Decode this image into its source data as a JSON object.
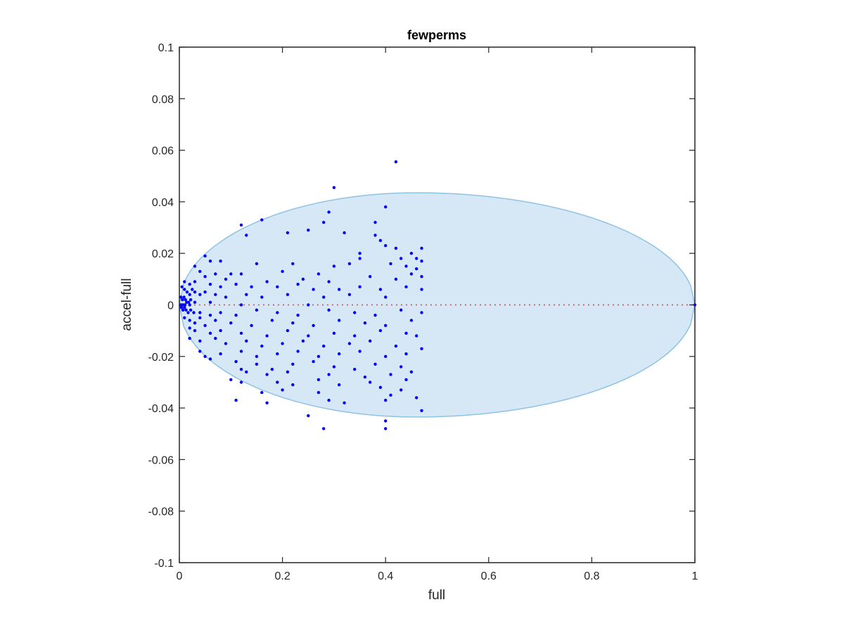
{
  "chart_data": {
    "type": "scatter",
    "title": "fewperms",
    "xlabel": "full",
    "ylabel": "accel-full",
    "xlim": [
      0,
      1
    ],
    "ylim": [
      -0.1,
      0.1
    ],
    "x_ticks": [
      "0",
      "0.2",
      "0.4",
      "0.6",
      "0.8",
      "1"
    ],
    "y_ticks": [
      "0.1",
      "0.08",
      "0.06",
      "0.04",
      "0.02",
      "0",
      "-0.02",
      "-0.04",
      "-0.06",
      "-0.08",
      "-0.1"
    ],
    "grid": false,
    "legend": "none",
    "colors": {
      "points": "#0000ff",
      "zero_line": "#ff3333",
      "ellipse_fill": "#d6e8f5",
      "ellipse_edge": "#8ec3e3",
      "axes": "#262626"
    },
    "ellipse": {
      "x_min": 0,
      "x_max": 1,
      "peak_x": 0.46,
      "peak_y": 0.0435
    },
    "zero_line": {
      "y": 0,
      "x_from": 0,
      "x_to": 1,
      "style": "dotted"
    },
    "series": [
      {
        "points": [
          [
            0.42,
            0.0555
          ],
          [
            0.3,
            0.0455
          ],
          [
            0.4,
            0.038
          ],
          [
            0.29,
            0.036
          ],
          [
            0.16,
            0.033
          ],
          [
            0.28,
            0.032
          ],
          [
            0.38,
            0.032
          ],
          [
            0.12,
            0.031
          ],
          [
            0.21,
            0.028
          ],
          [
            0.32,
            0.028
          ],
          [
            0.38,
            0.027
          ],
          [
            0.13,
            0.027
          ],
          [
            0.25,
            0.029
          ],
          [
            0.39,
            0.025
          ],
          [
            0.4,
            0.023
          ],
          [
            0.42,
            0.022
          ],
          [
            0.47,
            0.022
          ],
          [
            0.05,
            0.019
          ],
          [
            0.06,
            0.017
          ],
          [
            0.35,
            0.02
          ],
          [
            0.45,
            0.02
          ],
          [
            0.46,
            0.018
          ],
          [
            0.35,
            0.018
          ],
          [
            0.43,
            0.018
          ],
          [
            0.47,
            0.017
          ],
          [
            0.15,
            0.016
          ],
          [
            0.08,
            0.017
          ],
          [
            0.03,
            0.015
          ],
          [
            0.04,
            0.013
          ],
          [
            0.07,
            0.012
          ],
          [
            0.1,
            0.012
          ],
          [
            0.2,
            0.013
          ],
          [
            0.27,
            0.012
          ],
          [
            0.22,
            0.016
          ],
          [
            0.3,
            0.015
          ],
          [
            0.33,
            0.016
          ],
          [
            0.41,
            0.016
          ],
          [
            0.44,
            0.015
          ],
          [
            0.46,
            0.014
          ],
          [
            0.05,
            0.011
          ],
          [
            0.09,
            0.01
          ],
          [
            0.12,
            0.012
          ],
          [
            0.17,
            0.009
          ],
          [
            0.24,
            0.01
          ],
          [
            0.29,
            0.009
          ],
          [
            0.37,
            0.011
          ],
          [
            0.42,
            0.01
          ],
          [
            0.45,
            0.012
          ],
          [
            0.47,
            0.011
          ],
          [
            0.01,
            0.009
          ],
          [
            0.02,
            0.008
          ],
          [
            0.03,
            0.009
          ],
          [
            0.06,
            0.008
          ],
          [
            0.08,
            0.007
          ],
          [
            0.11,
            0.008
          ],
          [
            0.14,
            0.007
          ],
          [
            0.19,
            0.007
          ],
          [
            0.23,
            0.008
          ],
          [
            0.26,
            0.006
          ],
          [
            0.31,
            0.006
          ],
          [
            0.35,
            0.007
          ],
          [
            0.39,
            0.006
          ],
          [
            0.44,
            0.007
          ],
          [
            0.47,
            0.006
          ],
          [
            0.005,
            0.007
          ],
          [
            0.01,
            0.006
          ],
          [
            0.015,
            0.005
          ],
          [
            0.02,
            0.004
          ],
          [
            0.025,
            0.006
          ],
          [
            0.03,
            0.005
          ],
          [
            0.04,
            0.004
          ],
          [
            0.05,
            0.005
          ],
          [
            0.07,
            0.004
          ],
          [
            0.09,
            0.003
          ],
          [
            0.13,
            0.004
          ],
          [
            0.16,
            0.003
          ],
          [
            0.21,
            0.004
          ],
          [
            0.28,
            0.003
          ],
          [
            0.33,
            0.004
          ],
          [
            0.4,
            0.003
          ],
          [
            0.003,
            0.003
          ],
          [
            0.006,
            0.002
          ],
          [
            0.009,
            0.003
          ],
          [
            0.012,
            0.002
          ],
          [
            0.018,
            0.001
          ],
          [
            0.022,
            0.002
          ],
          [
            0.03,
            0.001
          ],
          [
            0.06,
            0.001
          ],
          [
            0.002,
            0.0
          ],
          [
            0.005,
            0.0
          ],
          [
            0.008,
            0.0
          ],
          [
            0.011,
            0.0
          ],
          [
            0.014,
            0.001
          ],
          [
            0.02,
            0.0
          ],
          [
            0.12,
            0.0
          ],
          [
            0.25,
            0.0
          ],
          [
            0.004,
            -0.001
          ],
          [
            0.007,
            -0.002
          ],
          [
            0.01,
            -0.001
          ],
          [
            0.013,
            -0.002
          ],
          [
            0.017,
            -0.003
          ],
          [
            0.022,
            -0.002
          ],
          [
            0.028,
            -0.003
          ],
          [
            0.04,
            -0.003
          ],
          [
            0.06,
            -0.004
          ],
          [
            0.08,
            -0.003
          ],
          [
            0.11,
            -0.004
          ],
          [
            0.15,
            -0.002
          ],
          [
            0.19,
            -0.003
          ],
          [
            0.23,
            -0.004
          ],
          [
            0.29,
            -0.002
          ],
          [
            0.34,
            -0.003
          ],
          [
            0.38,
            -0.004
          ],
          [
            0.43,
            -0.002
          ],
          [
            0.47,
            -0.003
          ],
          [
            0.01,
            -0.005
          ],
          [
            0.02,
            -0.006
          ],
          [
            0.03,
            -0.007
          ],
          [
            0.04,
            -0.005
          ],
          [
            0.05,
            -0.008
          ],
          [
            0.07,
            -0.006
          ],
          [
            0.1,
            -0.007
          ],
          [
            0.14,
            -0.008
          ],
          [
            0.18,
            -0.006
          ],
          [
            0.22,
            -0.007
          ],
          [
            0.26,
            -0.008
          ],
          [
            0.31,
            -0.006
          ],
          [
            0.36,
            -0.007
          ],
          [
            0.4,
            -0.008
          ],
          [
            0.45,
            -0.006
          ],
          [
            0.02,
            -0.009
          ],
          [
            0.03,
            -0.01
          ],
          [
            0.06,
            -0.011
          ],
          [
            0.08,
            -0.01
          ],
          [
            0.12,
            -0.011
          ],
          [
            0.17,
            -0.012
          ],
          [
            0.21,
            -0.01
          ],
          [
            0.25,
            -0.012
          ],
          [
            0.3,
            -0.011
          ],
          [
            0.34,
            -0.012
          ],
          [
            0.39,
            -0.01
          ],
          [
            0.44,
            -0.011
          ],
          [
            0.46,
            -0.012
          ],
          [
            0.02,
            -0.013
          ],
          [
            0.04,
            -0.014
          ],
          [
            0.07,
            -0.013
          ],
          [
            0.09,
            -0.015
          ],
          [
            0.13,
            -0.014
          ],
          [
            0.16,
            -0.016
          ],
          [
            0.2,
            -0.015
          ],
          [
            0.24,
            -0.014
          ],
          [
            0.28,
            -0.016
          ],
          [
            0.33,
            -0.015
          ],
          [
            0.37,
            -0.014
          ],
          [
            0.42,
            -0.016
          ],
          [
            0.47,
            -0.017
          ],
          [
            0.04,
            -0.018
          ],
          [
            0.05,
            -0.02
          ],
          [
            0.06,
            -0.021
          ],
          [
            0.08,
            -0.019
          ],
          [
            0.12,
            -0.018
          ],
          [
            0.15,
            -0.02
          ],
          [
            0.19,
            -0.019
          ],
          [
            0.23,
            -0.018
          ],
          [
            0.27,
            -0.02
          ],
          [
            0.31,
            -0.019
          ],
          [
            0.35,
            -0.018
          ],
          [
            0.4,
            -0.02
          ],
          [
            0.44,
            -0.019
          ],
          [
            0.11,
            -0.022
          ],
          [
            0.15,
            -0.023
          ],
          [
            0.18,
            -0.025
          ],
          [
            0.22,
            -0.023
          ],
          [
            0.26,
            -0.022
          ],
          [
            0.3,
            -0.024
          ],
          [
            0.34,
            -0.025
          ],
          [
            0.38,
            -0.023
          ],
          [
            0.43,
            -0.024
          ],
          [
            0.12,
            -0.025
          ],
          [
            0.13,
            -0.026
          ],
          [
            0.17,
            -0.027
          ],
          [
            0.21,
            -0.026
          ],
          [
            0.29,
            -0.027
          ],
          [
            0.36,
            -0.028
          ],
          [
            0.41,
            -0.027
          ],
          [
            0.45,
            -0.026
          ],
          [
            0.1,
            -0.029
          ],
          [
            0.12,
            -0.03
          ],
          [
            0.19,
            -0.03
          ],
          [
            0.22,
            -0.031
          ],
          [
            0.27,
            -0.029
          ],
          [
            0.31,
            -0.031
          ],
          [
            0.37,
            -0.03
          ],
          [
            0.39,
            -0.032
          ],
          [
            0.44,
            -0.029
          ],
          [
            0.2,
            -0.033
          ],
          [
            0.27,
            -0.034
          ],
          [
            0.16,
            -0.034
          ],
          [
            0.41,
            -0.035
          ],
          [
            0.43,
            -0.033
          ],
          [
            0.11,
            -0.037
          ],
          [
            0.17,
            -0.038
          ],
          [
            0.29,
            -0.037
          ],
          [
            0.32,
            -0.038
          ],
          [
            0.4,
            -0.037
          ],
          [
            0.46,
            -0.036
          ],
          [
            0.47,
            -0.041
          ],
          [
            0.25,
            -0.043
          ],
          [
            0.28,
            -0.048
          ],
          [
            0.4,
            -0.045
          ],
          [
            0.4,
            -0.048
          ],
          [
            1.0,
            0.0
          ]
        ]
      }
    ]
  }
}
